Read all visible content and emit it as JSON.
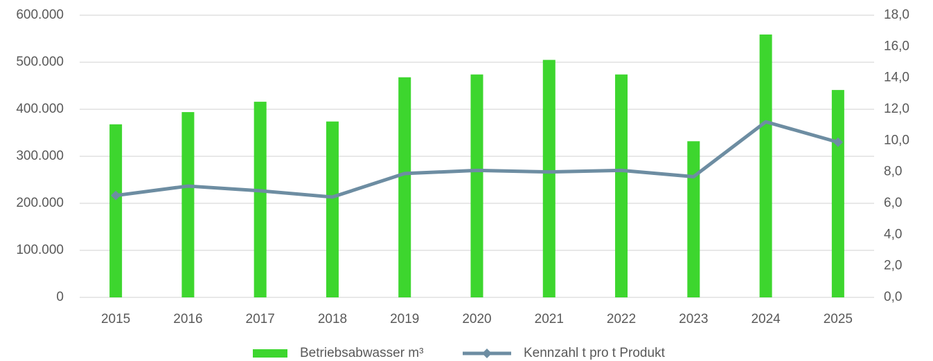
{
  "chart_data": {
    "type": "combo",
    "categories": [
      "2015",
      "2016",
      "2017",
      "2018",
      "2019",
      "2020",
      "2021",
      "2022",
      "2023",
      "2024",
      "2025"
    ],
    "series": [
      {
        "name": "Betriebsabwasser m³",
        "type": "bar",
        "color": "#3dd62e",
        "values": [
          368000,
          394000,
          416000,
          374000,
          468000,
          474000,
          505000,
          474000,
          332000,
          559000,
          441000
        ]
      },
      {
        "name": "Kennzahl t pro t Produkt",
        "type": "line",
        "axis": "y2",
        "color": "#6d8da2",
        "values": [
          6.5,
          7.1,
          6.8,
          6.4,
          7.9,
          8.1,
          8.0,
          8.1,
          7.7,
          11.2,
          9.9
        ]
      }
    ],
    "ylim": [
      0,
      600000
    ],
    "yticks": [
      0,
      {
        "value": 100000,
        "label": "100.000"
      },
      {
        "value": 200000,
        "label": "200.000"
      },
      {
        "value": 300000,
        "label": "300.000"
      },
      {
        "value": 400000,
        "label": "400.000"
      },
      {
        "value": 500000,
        "label": "500.000"
      },
      {
        "value": 600000,
        "label": "600.000"
      }
    ],
    "y2lim": [
      0,
      18
    ],
    "y2ticks": [
      {
        "value": 0,
        "label": "0,0"
      },
      {
        "value": 2,
        "label": "2,0"
      },
      {
        "value": 4,
        "label": "4,0"
      },
      {
        "value": 6,
        "label": "6,0"
      },
      {
        "value": 8,
        "label": "8,0"
      },
      {
        "value": 10,
        "label": "10,0"
      },
      {
        "value": 12,
        "label": "12,0"
      },
      {
        "value": 14,
        "label": "14,0"
      },
      {
        "value": 16,
        "label": "16,0"
      },
      {
        "value": 18,
        "label": "18,0"
      }
    ],
    "grid": true,
    "legend": "bottom"
  }
}
